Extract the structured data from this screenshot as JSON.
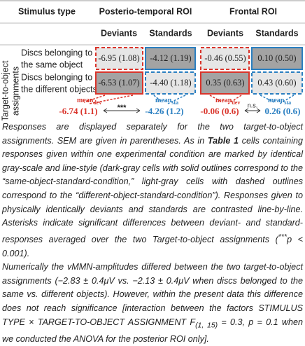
{
  "header": {
    "stimulus_type": "Stimulus type",
    "roi": [
      "Posterio-temporal ROI",
      "Frontal ROI"
    ],
    "conditions": [
      "Deviants",
      "Standards",
      "Deviants",
      "Standards"
    ]
  },
  "side_label": [
    "Target-to-object",
    "assignments"
  ],
  "rows": [
    {
      "label": [
        "Discs belonging to",
        "the same object"
      ],
      "cells": [
        "-6.95 (1.08)",
        "-4.12 (1.19)",
        "-0.46 (0.55)",
        "0.10 (0.50)"
      ]
    },
    {
      "label": [
        "Discs belonging to",
        "the different objects"
      ],
      "cells": [
        "-6.53 (1.07)",
        "-4.40 (1.18)",
        "0.35 (0.63)",
        "0.43 (0.60)"
      ]
    }
  ],
  "means": [
    {
      "name": "mean",
      "sub": "dev",
      "value": "-6.74 (1.1)"
    },
    {
      "name": "mean",
      "sub": "sta",
      "value": "-4.26 (1.2)"
    },
    {
      "name": "mean",
      "sub": "dev",
      "value": "-0.06 (0.6)"
    },
    {
      "name": "mean",
      "sub": "sta",
      "value": "0.26 (0.6)"
    }
  ],
  "significance": [
    "***",
    "n.s."
  ],
  "caption": {
    "p1": [
      "Responses are displayed separately for the two target-to-object assignments. SEM are given in parentheses. As in ",
      "Table 1",
      " cells containing responses given within one experimental condition are marked by identical gray-scale and line-style (dark-gray cells with solid outlines correspond to the “same-object-standard-condition,” light-gray cells with dashed outlines correspond to the “different-object-standard-condition”). Responses given to physically identically deviants and standards are contrasted line-by-line. Asterisks indicate significant differences between deviant- and standard-responses averaged over the two Target-to-object assignments (",
      "***",
      "p < 0.001)."
    ],
    "p2": [
      "Numerically the vMMN-amplitudes differed between the two target-to-object assignments (−2.83 ± 0.4μV vs. −2.13 ± 0.4μV when discs belonged to the same vs. different objects). However, within the present data this difference does not reach significance [interaction between the factors STIMULUS TYPE × TARGET-TO-OBJECT ASSIGNMENT F",
      "(1, 15)",
      " = 0.3, p = 0.1 when we conducted the ANOVA for the posterior ROI only]."
    ]
  }
}
